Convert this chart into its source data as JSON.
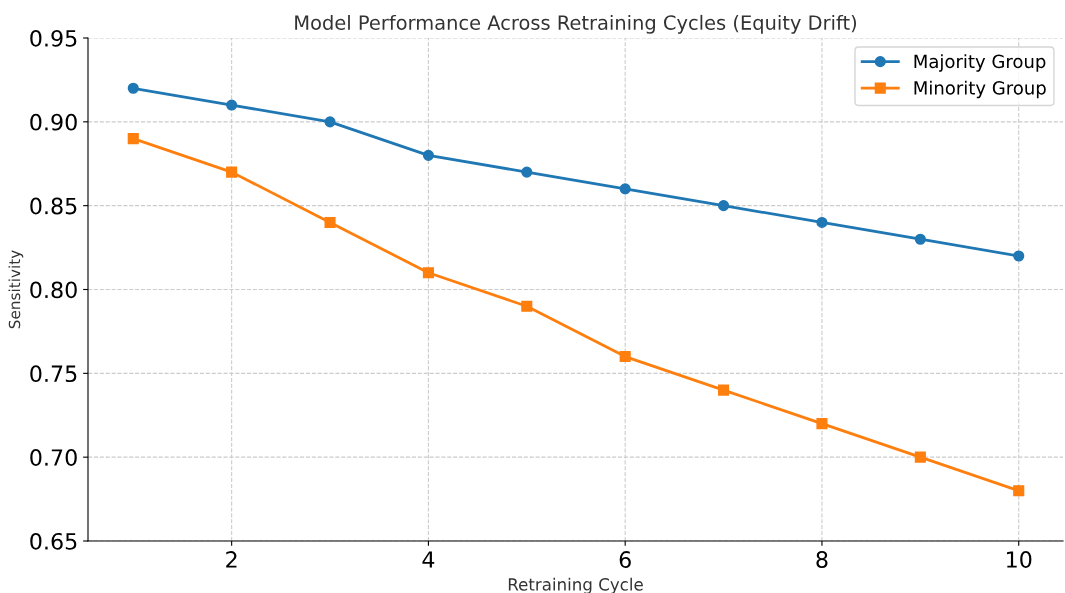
{
  "chart_data": {
    "type": "line",
    "title": "Model Performance Across Retraining Cycles (Equity Drift)",
    "xlabel": "Retraining Cycle",
    "ylabel": "Sensitivity",
    "x": [
      1,
      2,
      3,
      4,
      5,
      6,
      7,
      8,
      9,
      10
    ],
    "series": [
      {
        "name": "Majority Group",
        "color": "#1f77b4",
        "marker": "circle",
        "values": [
          0.92,
          0.91,
          0.9,
          0.88,
          0.87,
          0.86,
          0.85,
          0.84,
          0.83,
          0.82
        ]
      },
      {
        "name": "Minority Group",
        "color": "#ff7f0e",
        "marker": "square",
        "values": [
          0.89,
          0.87,
          0.84,
          0.81,
          0.79,
          0.76,
          0.74,
          0.72,
          0.7,
          0.68
        ]
      }
    ],
    "xlim": [
      0.54,
      10.45
    ],
    "xticks": [
      2,
      4,
      6,
      8,
      10
    ],
    "ylim": [
      0.65,
      0.95
    ],
    "yticks": [
      0.65,
      {
        "value": 0.7,
        "label": "0.70"
      },
      0.75,
      {
        "value": 0.8,
        "label": "0.80"
      },
      0.85,
      {
        "value": 0.9,
        "label": "0.90"
      },
      0.95
    ],
    "grid": true,
    "legend": "top right",
    "line_style": "solid"
  }
}
